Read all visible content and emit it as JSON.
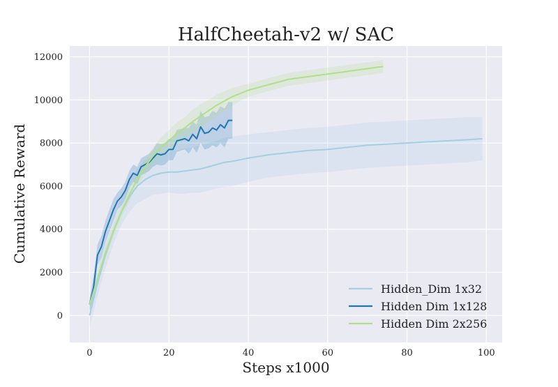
{
  "chart_data": {
    "type": "line",
    "title": "HalfCheetah-v2 w/ SAC",
    "xlabel": "Steps x1000",
    "ylabel": "Cumulative Reward",
    "xlim": [
      -5,
      104
    ],
    "ylim": [
      -1250,
      12500
    ],
    "xticks": [
      0,
      20,
      40,
      60,
      80,
      100
    ],
    "yticks": [
      0,
      2000,
      4000,
      6000,
      8000,
      10000,
      12000
    ],
    "grid": true,
    "legend_position": "lower-right",
    "colors": {
      "background": "#eaeaf2",
      "grid": "#ffffff"
    },
    "series": [
      {
        "name": "Hidden_Dim 1x32",
        "color": "#a6cee3",
        "x": [
          0,
          2,
          4,
          6,
          8,
          10,
          12,
          14,
          16,
          18,
          20,
          22,
          24,
          26,
          28,
          30,
          32,
          34,
          36,
          40,
          45,
          50,
          55,
          60,
          65,
          70,
          75,
          80,
          85,
          90,
          95,
          99
        ],
        "y": [
          0,
          1500,
          2800,
          3900,
          4800,
          5500,
          6000,
          6300,
          6500,
          6600,
          6650,
          6650,
          6700,
          6750,
          6800,
          6900,
          7000,
          7100,
          7150,
          7300,
          7450,
          7550,
          7650,
          7700,
          7800,
          7900,
          7950,
          8000,
          8050,
          8100,
          8150,
          8200
        ],
        "band": [
          [
            -600,
            600
          ],
          [
            900,
            2100
          ],
          [
            2200,
            3400
          ],
          [
            3300,
            4500
          ],
          [
            4200,
            5400
          ],
          [
            4800,
            6200
          ],
          [
            5200,
            6800
          ],
          [
            5400,
            7200
          ],
          [
            5600,
            7400
          ],
          [
            5650,
            7550
          ],
          [
            5700,
            7600
          ],
          [
            5650,
            7650
          ],
          [
            5650,
            7750
          ],
          [
            5700,
            7800
          ],
          [
            5700,
            7900
          ],
          [
            5800,
            8000
          ],
          [
            5900,
            8100
          ],
          [
            5950,
            8250
          ],
          [
            6000,
            8300
          ],
          [
            6200,
            8400
          ],
          [
            6400,
            8500
          ],
          [
            6500,
            8600
          ],
          [
            6600,
            8700
          ],
          [
            6650,
            8750
          ],
          [
            6750,
            8850
          ],
          [
            6850,
            8950
          ],
          [
            6900,
            9000
          ],
          [
            6950,
            9050
          ],
          [
            7000,
            9100
          ],
          [
            7050,
            9150
          ],
          [
            7100,
            9200
          ],
          [
            7200,
            9200
          ]
        ]
      },
      {
        "name": "Hidden Dim 1x128",
        "color": "#1f78b4",
        "x": [
          0,
          1,
          2,
          3,
          4,
          5,
          6,
          7,
          8,
          9,
          10,
          11,
          12,
          13,
          14,
          15,
          16,
          17,
          18,
          19,
          20,
          21,
          22,
          23,
          24,
          25,
          26,
          27,
          28,
          29,
          30,
          31,
          32,
          33,
          34,
          35,
          36
        ],
        "y": [
          500,
          1300,
          2800,
          3200,
          3900,
          4400,
          4900,
          5300,
          5500,
          5800,
          6300,
          6600,
          6500,
          6900,
          7000,
          7100,
          7300,
          7500,
          7450,
          7500,
          7700,
          7700,
          8100,
          8150,
          8200,
          8100,
          8400,
          8200,
          8750,
          8450,
          8500,
          8700,
          8600,
          8850,
          8700,
          9050,
          9050
        ],
        "band": [
          [
            200,
            800
          ],
          [
            800,
            1800
          ],
          [
            2300,
            3300
          ],
          [
            2700,
            3700
          ],
          [
            3400,
            4400
          ],
          [
            3900,
            4900
          ],
          [
            4400,
            5400
          ],
          [
            4900,
            5700
          ],
          [
            5100,
            5900
          ],
          [
            5400,
            6200
          ],
          [
            5900,
            6700
          ],
          [
            6200,
            7000
          ],
          [
            6100,
            6900
          ],
          [
            6500,
            7300
          ],
          [
            6600,
            7400
          ],
          [
            6700,
            7500
          ],
          [
            6900,
            7700
          ],
          [
            7000,
            8000
          ],
          [
            6950,
            7950
          ],
          [
            7000,
            8000
          ],
          [
            7200,
            8200
          ],
          [
            7200,
            8200
          ],
          [
            7600,
            8600
          ],
          [
            7650,
            8650
          ],
          [
            7700,
            8700
          ],
          [
            7500,
            8700
          ],
          [
            7800,
            9000
          ],
          [
            7550,
            8850
          ],
          [
            8000,
            9500
          ],
          [
            7700,
            9200
          ],
          [
            7750,
            9250
          ],
          [
            7900,
            9500
          ],
          [
            7800,
            9400
          ],
          [
            8000,
            9700
          ],
          [
            7800,
            9600
          ],
          [
            8200,
            9900
          ],
          [
            8200,
            9900
          ]
        ]
      },
      {
        "name": "Hidden Dim 2x256",
        "color": "#b2df8a",
        "x": [
          0,
          2,
          4,
          6,
          8,
          10,
          12,
          14,
          16,
          18,
          20,
          22,
          24,
          26,
          28,
          30,
          32,
          34,
          36,
          38,
          40,
          42,
          44,
          46,
          48,
          50,
          52,
          54,
          56,
          58,
          60,
          62,
          64,
          66,
          68,
          70,
          72,
          74
        ],
        "y": [
          500,
          1700,
          2900,
          3900,
          4800,
          5600,
          6300,
          6900,
          7400,
          7800,
          8100,
          8450,
          8700,
          9000,
          9250,
          9500,
          9750,
          9950,
          10150,
          10300,
          10450,
          10550,
          10650,
          10750,
          10850,
          10950,
          11000,
          11050,
          11100,
          11150,
          11200,
          11250,
          11300,
          11350,
          11400,
          11450,
          11500,
          11550
        ],
        "band": [
          [
            250,
            750
          ],
          [
            1450,
            1950
          ],
          [
            2650,
            3150
          ],
          [
            3650,
            4150
          ],
          [
            4550,
            5050
          ],
          [
            5300,
            5900
          ],
          [
            6000,
            6600
          ],
          [
            6550,
            7250
          ],
          [
            7000,
            7800
          ],
          [
            7350,
            8250
          ],
          [
            7600,
            8600
          ],
          [
            7950,
            8950
          ],
          [
            8200,
            9200
          ],
          [
            8450,
            9550
          ],
          [
            8700,
            9800
          ],
          [
            9000,
            10000
          ],
          [
            9250,
            10250
          ],
          [
            9500,
            10400
          ],
          [
            9750,
            10550
          ],
          [
            9950,
            10650
          ],
          [
            10150,
            10750
          ],
          [
            10250,
            10850
          ],
          [
            10350,
            10950
          ],
          [
            10450,
            11050
          ],
          [
            10550,
            11150
          ],
          [
            10650,
            11250
          ],
          [
            10700,
            11300
          ],
          [
            10750,
            11350
          ],
          [
            10800,
            11400
          ],
          [
            10850,
            11450
          ],
          [
            10900,
            11500
          ],
          [
            10950,
            11550
          ],
          [
            11000,
            11600
          ],
          [
            11050,
            11650
          ],
          [
            11100,
            11700
          ],
          [
            11150,
            11750
          ],
          [
            11200,
            11800
          ],
          [
            11250,
            11850
          ]
        ]
      }
    ]
  }
}
